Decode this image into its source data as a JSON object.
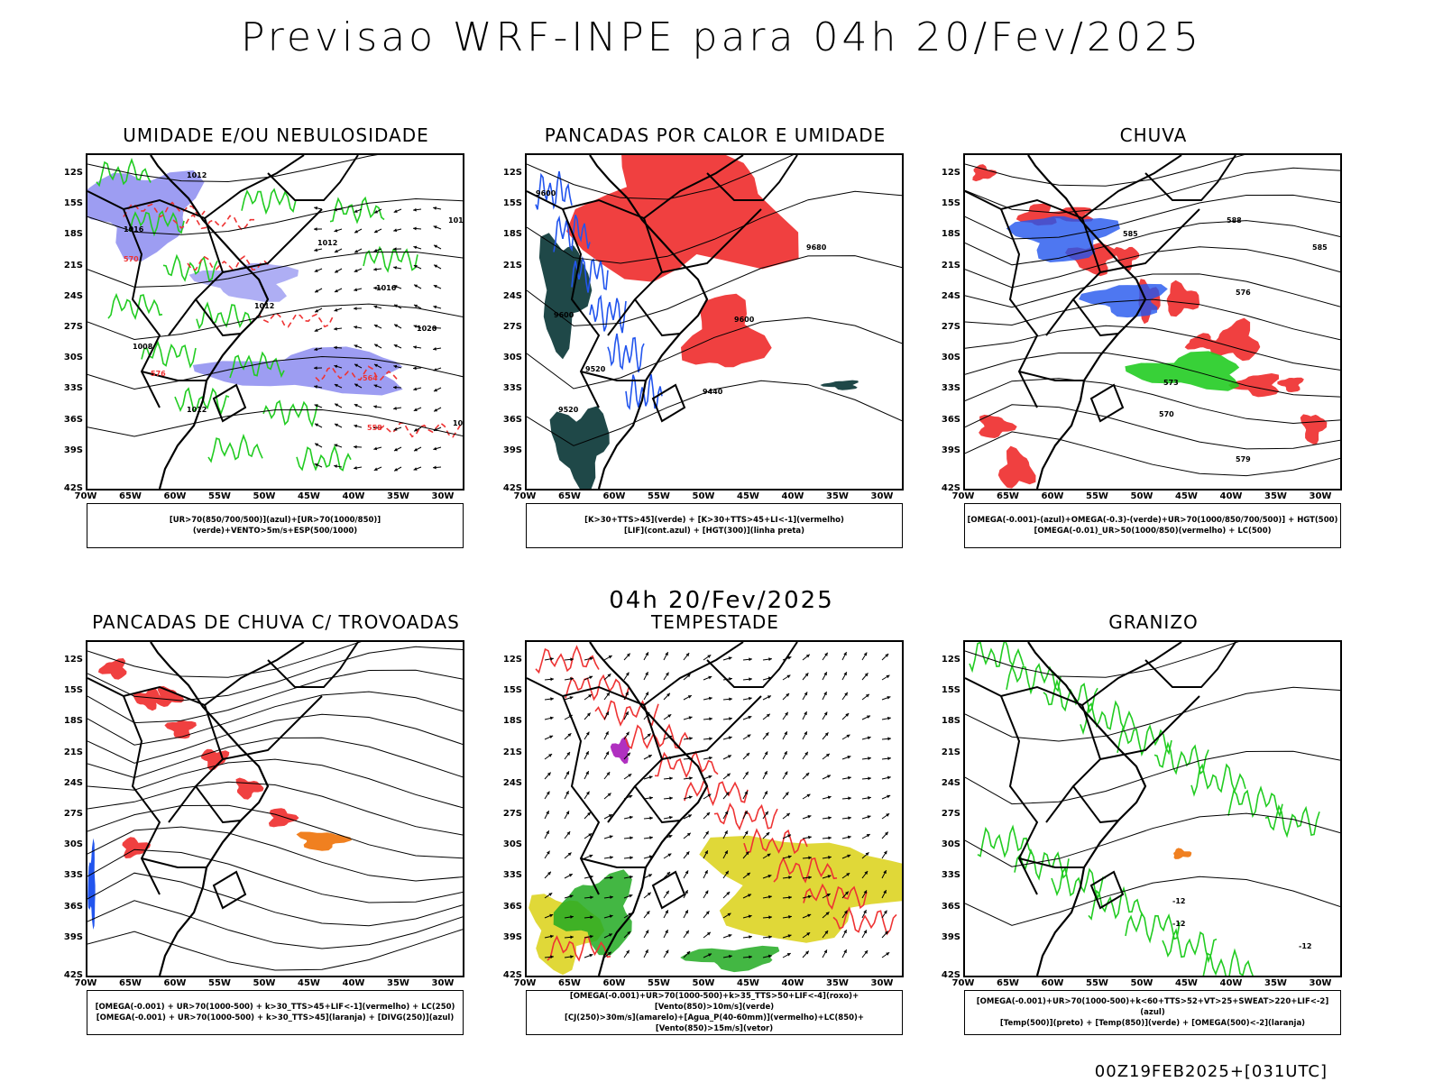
{
  "title": "Previsao WRF-INPE  para 04h 20/Fev/2025",
  "mid_title": "04h 20/Fev/2025",
  "footer": "00Z19FEB2025+[031UTC]",
  "lat_labels": [
    "12S",
    "15S",
    "18S",
    "21S",
    "24S",
    "27S",
    "30S",
    "33S",
    "36S",
    "39S",
    "42S"
  ],
  "lon_labels": [
    "70W",
    "65W",
    "60W",
    "55W",
    "50W",
    "45W",
    "40W",
    "35W",
    "30W"
  ],
  "colors": {
    "blue_fill": "#8c8cf0",
    "green_line": "#22cc22",
    "red_fill": "#f04040",
    "red_line": "#ee3333",
    "dark_teal": "#1f4848",
    "yellow": "#e0d838",
    "orange": "#f08020",
    "blue": "#2255ee",
    "purple": "#b030c0"
  },
  "panels": [
    {
      "id": "umidade",
      "title": "UMIDADE E/OU NEBULOSIDADE",
      "legend": [
        "[UR>70(850/700/500)](azul)+[UR>70(1000/850)](verde)+VENTO>5m/s+ESP(500/1000)"
      ],
      "contour_labels": [
        "1012",
        "1016",
        "1012",
        "1016",
        "1012",
        "1008",
        "1012",
        "1016",
        "1020",
        "1024",
        "570",
        "576",
        "564",
        "558"
      ]
    },
    {
      "id": "pancadas_calor",
      "title": "PANCADAS POR CALOR E UMIDADE",
      "legend": [
        "[K>30+TTS>45](verde) + [K>30+TTS>45+LI<-1](vermelho)",
        "[LIF](cont.azul) + [HGT(300)](linha preta)"
      ],
      "contour_labels": [
        "9600",
        "9680",
        "9600",
        "9600",
        "9520",
        "9440",
        "9520"
      ]
    },
    {
      "id": "chuva",
      "title": "CHUVA",
      "legend": [
        "[OMEGA(-0.001)-(azul)+OMEGA(-0.3)-(verde)+UR>70(1000/850/700/500)] + HGT(500)",
        "[OMEGA(-0.01)_UR>50(1000/850)(vermelho) + LC(500)"
      ],
      "contour_labels": [
        "585",
        "588",
        "585",
        "576",
        "573",
        "570",
        "579"
      ]
    },
    {
      "id": "trovoadas",
      "title": "PANCADAS DE CHUVA C/ TROVOADAS",
      "legend": [
        "[OMEGA(-0.001) + UR>70(1000-500) + k>30_TTS>45+LIF<-1](vermelho) + LC(250)",
        "[OMEGA(-0.001) + UR>70(1000-500) + k>30_TTS>45](laranja) + [DIVG(250)](azul)"
      ],
      "contour_labels": []
    },
    {
      "id": "tempestade",
      "title": "TEMPESTADE",
      "legend": [
        "[OMEGA(-0.001)+UR>70(1000-500)+k>35_TTS>50+LIF<-4](roxo)+[Vento(850)>10m/s](verde)",
        "[CJ(250)>30m/s](amarelo)+[Agua_P(40-60mm)](vermelho)+LC(850)+[Vento(850)>15m/s](vetor)"
      ],
      "contour_labels": []
    },
    {
      "id": "granizo",
      "title": "GRANIZO",
      "legend": [
        "[OMEGA(-0.001)+UR>70(1000-500)+k<60+TTS>52+VT>25+SWEAT>220+LIF<-2](azul)",
        "[Temp(500)](preto) + [Temp(850)](verde) + [OMEGA(500)<-2](laranja)"
      ],
      "contour_labels": [
        "-12",
        "-12",
        "-12"
      ]
    }
  ]
}
